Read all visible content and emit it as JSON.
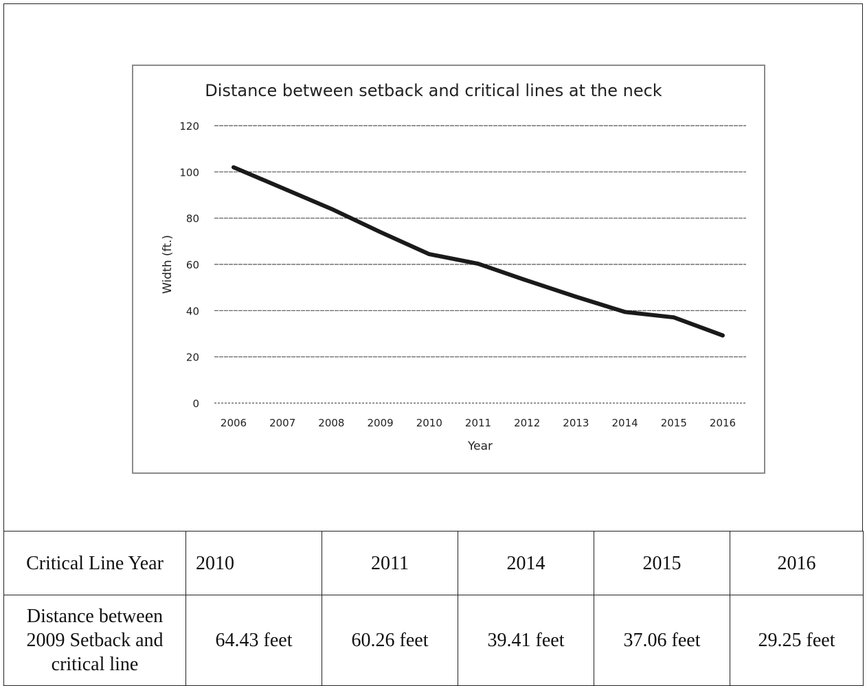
{
  "chart_data": {
    "type": "line",
    "title": "Distance between setback and critical lines at the neck",
    "xlabel": "Year",
    "ylabel": "Width (ft.)",
    "x": [
      "2006",
      "2007",
      "2008",
      "2009",
      "2010",
      "2011",
      "2012",
      "2013",
      "2014",
      "2015",
      "2016"
    ],
    "series": [
      {
        "values": [
          102,
          93,
          84,
          74,
          64.43,
          60.26,
          53,
          46,
          39.41,
          37.06,
          29.25
        ]
      }
    ],
    "ylim": [
      0,
      120
    ],
    "yticks": [
      0,
      20,
      40,
      60,
      80,
      100,
      120
    ],
    "grid": true,
    "line_color": "#1a1a1a"
  },
  "table": {
    "header_label": "Critical Line Year",
    "years": [
      "2010",
      "2011",
      "2014",
      "2015",
      "2016"
    ],
    "row_label": "Distance between 2009 Setback and critical line",
    "distances": [
      "64.43 feet",
      "60.26 feet",
      "39.41 feet",
      "37.06 feet",
      "29.25 feet"
    ]
  }
}
